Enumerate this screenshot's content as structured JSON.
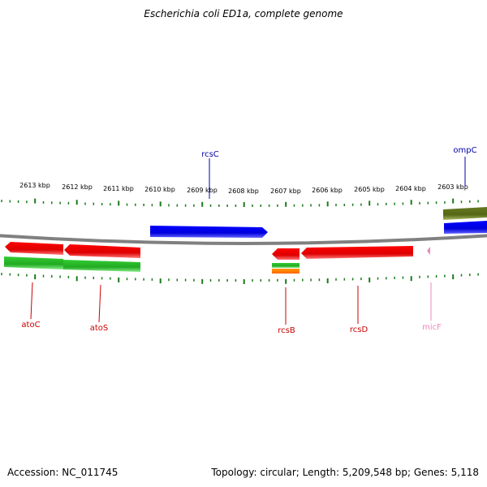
{
  "title": "Escherichia coli ED1a, complete genome",
  "footer": {
    "accession": "Accession: NC_011745",
    "summary": "Topology: circular; Length: 5,209,548 bp; Genes: 5,118"
  },
  "colors": {
    "tick": "#1a7a1a",
    "backbone": "#808080",
    "forward_gene": "#0000ee",
    "reverse_gene": "#ee0000",
    "rna": "#ee88bb",
    "green_feature": "#33cc33",
    "olive_feature": "#667a22",
    "orange_feature": "#ff8800",
    "label_forward": "#0000aa",
    "label_reverse": "#cc0000",
    "label_rna": "#ee88bb"
  },
  "scale_labels": [
    "2613 kbp",
    "2612 kbp",
    "2611 kbp",
    "2610 kbp",
    "2609 kbp",
    "2608 kbp",
    "2607 kbp",
    "2606 kbp",
    "2605 kbp",
    "2604 kbp",
    "2603 kbp"
  ],
  "gene_labels": {
    "rcsC": "rcsC",
    "ompC": "ompC",
    "atoC": "atoC",
    "atoS": "atoS",
    "rcsB": "rcsB",
    "rcsD": "rcsD",
    "micF": "micF"
  }
}
